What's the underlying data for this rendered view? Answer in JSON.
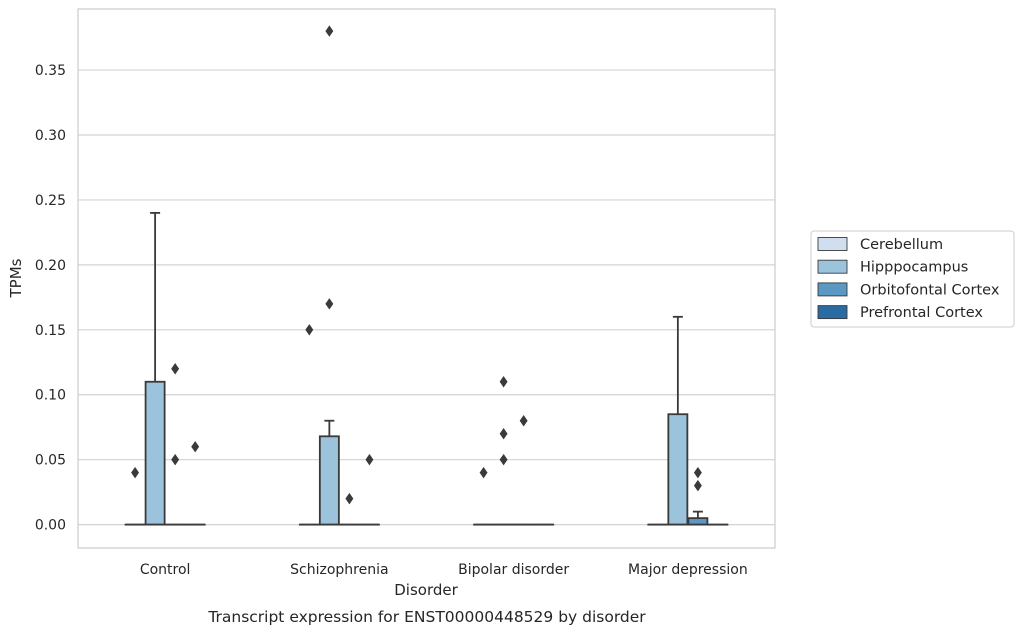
{
  "chart_data": {
    "type": "box",
    "title": "",
    "caption": "Transcript expression for ENST00000448529 by disorder",
    "xlabel": "Disorder",
    "ylabel": "TPMs",
    "ylim": [
      -0.018,
      0.397
    ],
    "yticks": [
      0.0,
      0.05,
      0.1,
      0.15,
      0.2,
      0.25,
      0.3,
      0.35
    ],
    "ytick_labels": [
      "0.00",
      "0.05",
      "0.10",
      "0.15",
      "0.20",
      "0.25",
      "0.30",
      "0.35"
    ],
    "grid": true,
    "legend_position": "right",
    "categories": [
      "Control",
      "Schizophrenia",
      "Bipolar disorder",
      "Major depression"
    ],
    "series": [
      {
        "name": "Cerebellum",
        "color": "#d0dfef",
        "boxes": [
          {
            "q1": 0,
            "median": 0,
            "q3": 0,
            "whisker_low": 0,
            "whisker_high": 0,
            "outliers": [
              0.04
            ]
          },
          {
            "q1": 0,
            "median": 0,
            "q3": 0,
            "whisker_low": 0,
            "whisker_high": 0,
            "outliers": [
              0.15
            ]
          },
          {
            "q1": 0,
            "median": 0,
            "q3": 0,
            "whisker_low": 0,
            "whisker_high": 0,
            "outliers": [
              0.04
            ]
          },
          {
            "q1": 0,
            "median": 0,
            "q3": 0,
            "whisker_low": 0,
            "whisker_high": 0,
            "outliers": []
          }
        ]
      },
      {
        "name": "Hipppocampus",
        "color": "#9bc3dc",
        "boxes": [
          {
            "q1": 0,
            "median": 0,
            "q3": 0.11,
            "whisker_low": 0,
            "whisker_high": 0.24,
            "outliers": []
          },
          {
            "q1": 0,
            "median": 0,
            "q3": 0.068,
            "whisker_low": 0,
            "whisker_high": 0.08,
            "outliers": [
              0.17,
              0.38
            ]
          },
          {
            "q1": 0,
            "median": 0,
            "q3": 0,
            "whisker_low": 0,
            "whisker_high": 0,
            "outliers": [
              0.05,
              0.07,
              0.11
            ]
          },
          {
            "q1": 0,
            "median": 0,
            "q3": 0.085,
            "whisker_low": 0,
            "whisker_high": 0.16,
            "outliers": []
          }
        ]
      },
      {
        "name": "Orbitofontal Cortex",
        "color": "#5b98c4",
        "boxes": [
          {
            "q1": 0,
            "median": 0,
            "q3": 0,
            "whisker_low": 0,
            "whisker_high": 0,
            "outliers": [
              0.05,
              0.12
            ]
          },
          {
            "q1": 0,
            "median": 0,
            "q3": 0,
            "whisker_low": 0,
            "whisker_high": 0,
            "outliers": [
              0.02
            ]
          },
          {
            "q1": 0,
            "median": 0,
            "q3": 0,
            "whisker_low": 0,
            "whisker_high": 0,
            "outliers": [
              0.08
            ]
          },
          {
            "q1": 0,
            "median": 0,
            "q3": 0.005,
            "whisker_low": 0,
            "whisker_high": 0.01,
            "outliers": [
              0.03,
              0.04
            ]
          }
        ]
      },
      {
        "name": "Prefrontal Cortex",
        "color": "#2b6ba4",
        "boxes": [
          {
            "q1": 0,
            "median": 0,
            "q3": 0,
            "whisker_low": 0,
            "whisker_high": 0,
            "outliers": [
              0.06
            ]
          },
          {
            "q1": 0,
            "median": 0,
            "q3": 0,
            "whisker_low": 0,
            "whisker_high": 0,
            "outliers": [
              0.05
            ]
          },
          {
            "q1": 0,
            "median": 0,
            "q3": 0,
            "whisker_low": 0,
            "whisker_high": 0,
            "outliers": []
          },
          {
            "q1": 0,
            "median": 0,
            "q3": 0,
            "whisker_low": 0,
            "whisker_high": 0,
            "outliers": []
          }
        ]
      }
    ]
  }
}
